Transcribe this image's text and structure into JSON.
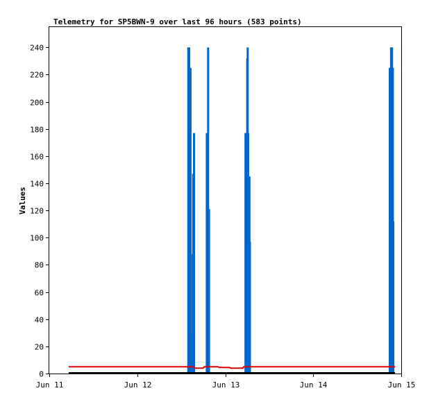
{
  "chart_data": {
    "type": "bar",
    "title": "Telemetry for SP5BWN-9 over last 96 hours (583 points)",
    "ylabel": "Values",
    "xlabel": "",
    "xlim": [
      "Jun 11",
      "Jun 15"
    ],
    "ylim": [
      0,
      255
    ],
    "grid": false,
    "x_ticks": [
      {
        "label": "Jun 11",
        "day": 11
      },
      {
        "label": "Jun 12",
        "day": 12
      },
      {
        "label": "Jun 13",
        "day": 13
      },
      {
        "label": "Jun 14",
        "day": 14
      },
      {
        "label": "Jun 15",
        "day": 15
      }
    ],
    "y_ticks": [
      0,
      20,
      40,
      60,
      80,
      100,
      120,
      140,
      160,
      180,
      200,
      220,
      240
    ],
    "series": [
      {
        "color": "#0066cc",
        "kind": "bars",
        "points": [
          {
            "day": 12.58,
            "v": 240
          },
          {
            "day": 12.59,
            "v": 240
          },
          {
            "day": 12.595,
            "v": 64
          },
          {
            "day": 12.605,
            "v": 225
          },
          {
            "day": 12.62,
            "v": 30
          },
          {
            "day": 12.63,
            "v": 88
          },
          {
            "day": 12.635,
            "v": 147
          },
          {
            "day": 12.645,
            "v": 177
          },
          {
            "day": 12.79,
            "v": 177
          },
          {
            "day": 12.8,
            "v": 97
          },
          {
            "day": 12.805,
            "v": 240
          },
          {
            "day": 12.815,
            "v": 121
          },
          {
            "day": 13.23,
            "v": 177
          },
          {
            "day": 13.24,
            "v": 177
          },
          {
            "day": 13.25,
            "v": 232
          },
          {
            "day": 13.255,
            "v": 240
          },
          {
            "day": 13.26,
            "v": 177
          },
          {
            "day": 13.27,
            "v": 145
          },
          {
            "day": 13.275,
            "v": 145
          },
          {
            "day": 13.28,
            "v": 97
          },
          {
            "day": 14.87,
            "v": 225
          },
          {
            "day": 14.875,
            "v": 145
          },
          {
            "day": 14.88,
            "v": 192
          },
          {
            "day": 14.885,
            "v": 240
          },
          {
            "day": 14.89,
            "v": 240
          },
          {
            "day": 14.895,
            "v": 240
          },
          {
            "day": 14.9,
            "v": 208
          },
          {
            "day": 14.905,
            "v": 225
          },
          {
            "day": 14.91,
            "v": 112
          }
        ]
      },
      {
        "color": "#dd0000",
        "kind": "step",
        "points": [
          {
            "day": 11.22,
            "v": 5
          },
          {
            "day": 12.64,
            "v": 5
          },
          {
            "day": 12.65,
            "v": 4
          },
          {
            "day": 12.75,
            "v": 4
          },
          {
            "day": 12.76,
            "v": 5
          },
          {
            "day": 12.92,
            "v": 5
          },
          {
            "day": 12.93,
            "v": 4.5
          },
          {
            "day": 13.05,
            "v": 4.5
          },
          {
            "day": 13.06,
            "v": 4
          },
          {
            "day": 13.2,
            "v": 4
          },
          {
            "day": 13.21,
            "v": 5
          },
          {
            "day": 14.93,
            "v": 5
          }
        ]
      },
      {
        "color": "#000000",
        "kind": "step",
        "points": [
          {
            "day": 11.22,
            "v": 0.5
          },
          {
            "day": 14.93,
            "v": 0.5
          }
        ]
      }
    ]
  }
}
